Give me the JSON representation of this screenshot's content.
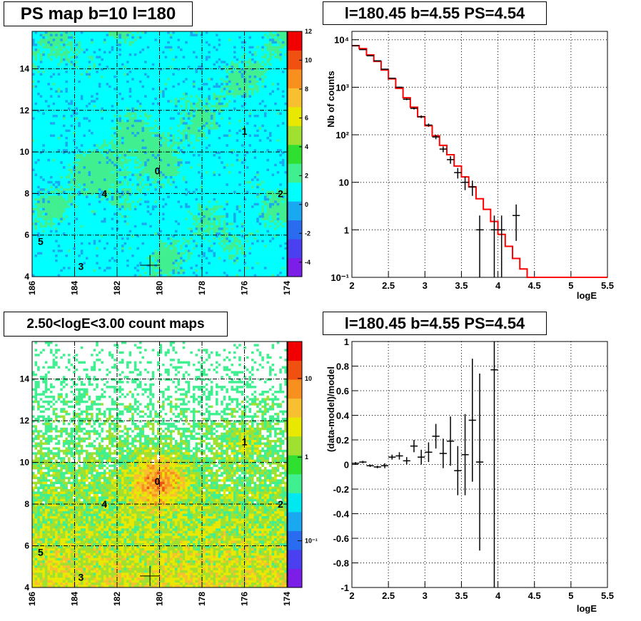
{
  "chart_data": [
    {
      "type": "heatmap",
      "title": "PS map b=10 l=180",
      "x_ticks": [
        "186",
        "184",
        "182",
        "180",
        "178",
        "176",
        "174"
      ],
      "y_ticks": [
        "4",
        "6",
        "8",
        "10",
        "12",
        "14"
      ],
      "xlim": [
        186,
        174
      ],
      "ylim": [
        4,
        15.8
      ],
      "colorbar_ticks": [
        "12",
        "10",
        "8",
        "6",
        "4",
        "2",
        "0",
        "-2",
        "-4"
      ],
      "colorbar_range": [
        -5,
        12
      ],
      "colormap": [
        "#7a1ee8",
        "#4a40f0",
        "#2a6cf0",
        "#1aa8f0",
        "#00ffff",
        "#40f090",
        "#30e030",
        "#a0e030",
        "#e8e800",
        "#f8c030",
        "#f89020",
        "#f05010",
        "#f00000"
      ],
      "field_value": 0,
      "sources": [
        {
          "label": "0",
          "l": 180.1,
          "b": 9.1
        },
        {
          "label": "1",
          "l": 176,
          "b": 11.0
        },
        {
          "label": "2",
          "l": 174.3,
          "b": 8.0
        },
        {
          "label": "3",
          "l": 183.7,
          "b": 4.5
        },
        {
          "label": "4",
          "l": 182.6,
          "b": 8.0
        },
        {
          "label": "5",
          "l": 185.6,
          "b": 5.7
        }
      ],
      "crosshair": {
        "l": 180.45,
        "b": 4.55
      }
    },
    {
      "type": "line",
      "title": "l=180.45 b=4.55 PS=4.54",
      "xlabel": "logE",
      "ylabel": "Nb of counts",
      "xlim": [
        2,
        5.5
      ],
      "ylim": [
        0.1,
        15000
      ],
      "y_scale": "log",
      "x_ticks": [
        "2",
        "2.5",
        "3",
        "3.5",
        "4",
        "4.5",
        "5",
        "5.5"
      ],
      "y_ticks": [
        "10⁻¹",
        "1",
        "10",
        "10²",
        "10³",
        "10⁴"
      ],
      "grid": true,
      "model_color": "#ff0000",
      "model": {
        "edges": [
          2.0,
          2.1,
          2.2,
          2.3,
          2.4,
          2.5,
          2.6,
          2.7,
          2.8,
          2.9,
          3.0,
          3.1,
          3.2,
          3.3,
          3.4,
          3.5,
          3.6,
          3.7,
          3.8,
          3.9,
          4.0,
          4.1,
          4.2,
          4.3,
          4.4,
          4.5,
          4.6,
          4.7,
          4.8,
          4.9,
          5.0,
          5.1,
          5.2,
          5.3,
          5.4,
          5.5
        ],
        "values": [
          7500,
          6500,
          4800,
          3500,
          2300,
          1500,
          950,
          600,
          380,
          240,
          155,
          95,
          60,
          38,
          22,
          13,
          8,
          4.5,
          2.7,
          1.5,
          0.8,
          0.45,
          0.25,
          0.15,
          0.1,
          0.1,
          0.1,
          0.1,
          0.1,
          0.1,
          0.1,
          0.1,
          0.1,
          0.1,
          0.1
        ]
      },
      "points": [
        {
          "x": 2.05,
          "y": 7500
        },
        {
          "x": 2.15,
          "y": 6200
        },
        {
          "x": 2.25,
          "y": 4600
        },
        {
          "x": 2.35,
          "y": 3600
        },
        {
          "x": 2.45,
          "y": 2400
        },
        {
          "x": 2.55,
          "y": 1550
        },
        {
          "x": 2.65,
          "y": 1000
        },
        {
          "x": 2.75,
          "y": 560
        },
        {
          "x": 2.85,
          "y": 360
        },
        {
          "x": 2.95,
          "y": 240
        },
        {
          "x": 3.05,
          "y": 160
        },
        {
          "x": 3.15,
          "y": 90
        },
        {
          "x": 3.25,
          "y": 50
        },
        {
          "x": 3.35,
          "y": 30
        },
        {
          "x": 3.45,
          "y": 16
        },
        {
          "x": 3.55,
          "y": 10
        },
        {
          "x": 3.65,
          "y": 8
        },
        {
          "x": 3.75,
          "y": 1
        },
        {
          "x": 3.95,
          "y": 1
        },
        {
          "x": 4.05,
          "y": 1
        },
        {
          "x": 4.25,
          "y": 2
        }
      ]
    },
    {
      "type": "heatmap",
      "title": "2.50<logE<3.00 count maps",
      "x_ticks": [
        "186",
        "184",
        "182",
        "180",
        "178",
        "176",
        "174"
      ],
      "y_ticks": [
        "4",
        "6",
        "8",
        "10",
        "12",
        "14"
      ],
      "xlim": [
        186,
        174
      ],
      "ylim": [
        4,
        15.8
      ],
      "colorbar_ticks": [
        "10",
        "1",
        "10⁻¹"
      ],
      "colorbar_scale": "log",
      "colormap": [
        "#7a1ee8",
        "#4a40f0",
        "#2a6cf0",
        "#1aa8f0",
        "#00e8f0",
        "#40f090",
        "#30e030",
        "#a0e030",
        "#e8e800",
        "#f8c030",
        "#f89020",
        "#f05010",
        "#f00000"
      ],
      "sources": [
        {
          "label": "0",
          "l": 180.1,
          "b": 9.1
        },
        {
          "label": "1",
          "l": 176,
          "b": 11.0
        },
        {
          "label": "2",
          "l": 174.3,
          "b": 8.0
        },
        {
          "label": "3",
          "l": 183.7,
          "b": 4.5
        },
        {
          "label": "4",
          "l": 182.6,
          "b": 8.0
        },
        {
          "label": "5",
          "l": 185.6,
          "b": 5.7
        }
      ],
      "crosshair": {
        "l": 180.45,
        "b": 4.55
      }
    },
    {
      "type": "scatter",
      "title": "l=180.45 b=4.55 PS=4.54",
      "xlabel": "logE",
      "ylabel": "(data-model)/model",
      "xlim": [
        2,
        5.5
      ],
      "ylim": [
        -1,
        1
      ],
      "x_ticks": [
        "2",
        "2.5",
        "3",
        "3.5",
        "4",
        "4.5",
        "5",
        "5.5"
      ],
      "y_ticks": [
        "-1",
        "-0.8",
        "-0.6",
        "-0.4",
        "-0.2",
        "0",
        "0.2",
        "0.4",
        "0.6",
        "0.8",
        "1"
      ],
      "grid": true,
      "points": [
        {
          "x": 2.05,
          "y": 0.01,
          "err": 0.01
        },
        {
          "x": 2.15,
          "y": 0.02,
          "err": 0.01
        },
        {
          "x": 2.25,
          "y": -0.01,
          "err": 0.01
        },
        {
          "x": 2.35,
          "y": -0.02,
          "err": 0.01
        },
        {
          "x": 2.45,
          "y": -0.01,
          "err": 0.02
        },
        {
          "x": 2.55,
          "y": 0.06,
          "err": 0.02
        },
        {
          "x": 2.65,
          "y": 0.07,
          "err": 0.03
        },
        {
          "x": 2.75,
          "y": 0.03,
          "err": 0.03
        },
        {
          "x": 2.85,
          "y": 0.15,
          "err": 0.05
        },
        {
          "x": 2.95,
          "y": 0.06,
          "err": 0.06
        },
        {
          "x": 3.05,
          "y": 0.1,
          "err": 0.08
        },
        {
          "x": 3.15,
          "y": 0.23,
          "err": 0.1
        },
        {
          "x": 3.25,
          "y": 0.09,
          "err": 0.12
        },
        {
          "x": 3.35,
          "y": 0.19,
          "err": 0.2
        },
        {
          "x": 3.45,
          "y": -0.05,
          "err": 0.2
        },
        {
          "x": 3.55,
          "y": 0.08,
          "err": 0.33
        },
        {
          "x": 3.65,
          "y": 0.36,
          "err": 0.5
        },
        {
          "x": 3.75,
          "y": 0.02,
          "err": 0.72
        },
        {
          "x": 3.95,
          "y": 0.77,
          "err": 1.8
        }
      ]
    }
  ]
}
